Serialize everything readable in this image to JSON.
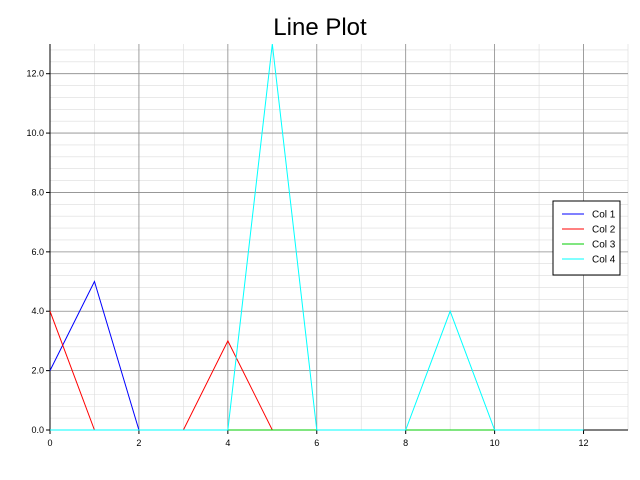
{
  "chart_data": {
    "type": "line",
    "title": "Line Plot",
    "xlabel": "",
    "ylabel": "",
    "xlim": [
      0,
      13
    ],
    "ylim": [
      0,
      13
    ],
    "x_ticks": [
      0,
      2,
      4,
      6,
      8,
      10,
      12
    ],
    "x_tick_labels": [
      "0",
      "2",
      "4",
      "6",
      "8",
      "10",
      "12"
    ],
    "y_ticks": [
      0,
      2,
      4,
      6,
      8,
      10,
      12
    ],
    "y_tick_labels": [
      "0.0",
      "2.0",
      "4.0",
      "6.0",
      "8.0",
      "10.0",
      "12.0"
    ],
    "x_minor_step": 1,
    "y_minor_step": 0.4,
    "grid": true,
    "legend_position": "right",
    "x": [
      0,
      1,
      2,
      3,
      4,
      5,
      6,
      7,
      8,
      9,
      10,
      11,
      12
    ],
    "series": [
      {
        "name": "Col 1",
        "color": "#0000ff",
        "values": [
          2,
          5,
          0,
          0,
          0,
          0,
          0,
          0,
          0,
          0,
          0,
          0,
          0
        ]
      },
      {
        "name": "Col 2",
        "color": "#ff0000",
        "values": [
          4,
          0,
          0,
          0,
          3,
          0,
          0,
          0,
          0,
          0,
          0,
          0,
          0
        ]
      },
      {
        "name": "Col 3",
        "color": "#00cc00",
        "values": [
          0,
          0,
          0,
          0,
          0,
          0,
          0,
          0,
          0,
          0,
          0,
          0,
          0
        ]
      },
      {
        "name": "Col 4",
        "color": "#00ffff",
        "values": [
          0,
          0,
          0,
          0,
          0,
          13,
          0,
          0,
          0,
          4,
          0,
          0,
          0
        ]
      }
    ]
  }
}
